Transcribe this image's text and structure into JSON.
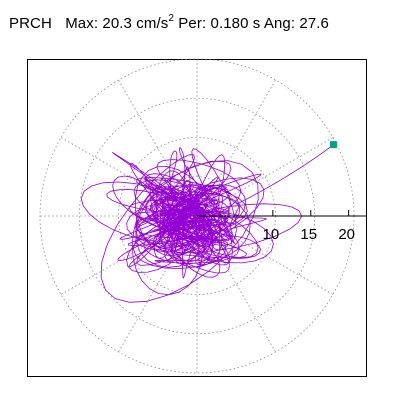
{
  "header": {
    "station": "PRCH",
    "max_label": "Max:",
    "max_value": "20.3",
    "max_unit": "cm/s",
    "max_unit_exp": "2",
    "per_label": "Per:",
    "per_value": "0.180 s",
    "ang_label": "Ang:",
    "ang_value": "27.6"
  },
  "chart_data": {
    "type": "scatter",
    "subtype": "polar-particle-motion",
    "max_amplitude": 20.3,
    "angle_deg": 27.6,
    "period_s": 0.18,
    "radial_ticks": [
      10,
      15,
      20
    ],
    "radial_tick_labels": [
      "10",
      "15",
      "20"
    ],
    "rings": [
      5,
      10,
      15,
      20
    ],
    "spoke_step_deg": 30,
    "grid": true,
    "colors": {
      "trace": "#9400d3",
      "marker": "#00a080",
      "grid": "#888888",
      "axis": "#000000"
    }
  }
}
